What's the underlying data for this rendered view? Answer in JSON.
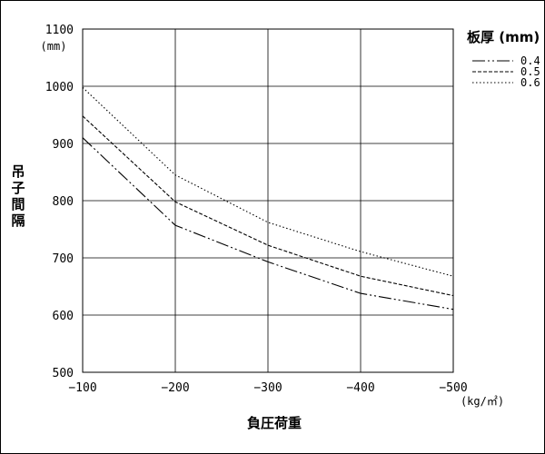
{
  "chart_data": {
    "type": "line",
    "xlabel": "負圧荷重",
    "x_unit": "(kg/㎡)",
    "ylabel": "吊子間隔",
    "y_unit": "(mm)",
    "legend_title": "板厚 (mm)",
    "legend_placement": "top-right",
    "x": [
      -100,
      -200,
      -300,
      -400,
      -500
    ],
    "x_tick_labels": [
      "−100",
      "−200",
      "−300",
      "−400",
      "−500"
    ],
    "xlim": [
      -100,
      -500
    ],
    "ylim": [
      500,
      1100
    ],
    "y_ticks": [
      500,
      600,
      700,
      800,
      900,
      1000,
      1100
    ],
    "grid": true,
    "series": [
      {
        "name": "0.4",
        "style": "dash-dot-dot",
        "values": [
          910,
          757,
          693,
          638,
          610
        ]
      },
      {
        "name": "0.5",
        "style": "dashed",
        "values": [
          948,
          798,
          722,
          668,
          634
        ]
      },
      {
        "name": "0.6",
        "style": "dotted",
        "values": [
          998,
          845,
          762,
          711,
          668
        ]
      }
    ]
  }
}
